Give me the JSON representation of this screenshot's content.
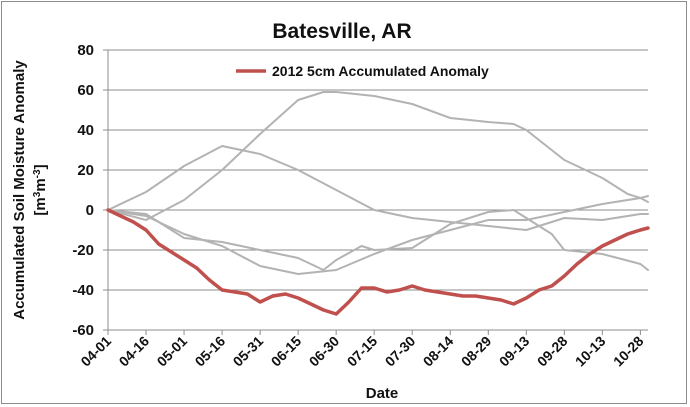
{
  "chart_data": {
    "type": "line",
    "title": "Batesville, AR",
    "xlabel": "Date",
    "ylabel": "Accumulated Soil Moisture Anomaly",
    "ylabel_units_base": "[m",
    "ylabel_units_sup1": "3",
    "ylabel_units_mid": "m",
    "ylabel_units_sup2": "-3",
    "ylabel_units_end": "]",
    "ylim": [
      -60,
      80
    ],
    "yticks": [
      -60,
      -40,
      -20,
      0,
      20,
      40,
      60,
      80
    ],
    "xlim": [
      0,
      213
    ],
    "x_categories": [
      "04-01",
      "04-16",
      "05-01",
      "05-16",
      "05-31",
      "06-15",
      "06-30",
      "07-15",
      "07-30",
      "08-14",
      "08-29",
      "09-13",
      "09-28",
      "10-13",
      "10-28"
    ],
    "x_tick_days": [
      0,
      15,
      30,
      45,
      60,
      75,
      90,
      105,
      120,
      135,
      150,
      165,
      180,
      195,
      210
    ],
    "grid": "horizontal",
    "legend": "top-center",
    "colors": {
      "highlight": "#c0504d",
      "other": "#b3b3b3",
      "grid": "#8c8c8c"
    },
    "series": [
      {
        "name": "2012 5cm Accumulated Anomaly",
        "highlight": true,
        "x": [
          0,
          5,
          10,
          15,
          20,
          25,
          30,
          35,
          40,
          45,
          50,
          55,
          60,
          65,
          70,
          75,
          80,
          85,
          90,
          95,
          100,
          105,
          110,
          115,
          120,
          125,
          130,
          135,
          140,
          145,
          150,
          155,
          160,
          165,
          170,
          175,
          180,
          185,
          190,
          195,
          200,
          205,
          210,
          213
        ],
        "y": [
          0,
          -3,
          -6,
          -10,
          -17,
          -21,
          -25,
          -29,
          -35,
          -40,
          -41,
          -42,
          -46,
          -43,
          -42,
          -44,
          -47,
          -50,
          -52,
          -46,
          -39,
          -39,
          -41,
          -40,
          -38,
          -40,
          -41,
          -42,
          -43,
          -43,
          -44,
          -45,
          -47,
          -44,
          -40,
          -38,
          -33,
          -27,
          -22,
          -18,
          -15,
          -12,
          -10,
          -9
        ]
      },
      {
        "x": [
          0,
          15,
          30,
          45,
          60,
          75,
          90,
          105,
          120,
          135,
          150,
          165,
          180,
          195,
          210,
          213
        ],
        "y": [
          0,
          9,
          22,
          32,
          28,
          20,
          10,
          0,
          -4,
          -6,
          -8,
          -10,
          -4,
          -5,
          -2,
          -2
        ]
      },
      {
        "x": [
          0,
          15,
          30,
          45,
          60,
          75,
          85,
          90,
          100,
          105,
          120,
          135,
          150,
          160,
          175,
          180,
          195,
          210,
          213
        ],
        "y": [
          0,
          -2,
          -14,
          -16,
          -20,
          -24,
          -30,
          -25,
          -18,
          -20,
          -19,
          -7,
          -1,
          0,
          -12,
          -20,
          -22,
          -27,
          -30
        ]
      },
      {
        "x": [
          0,
          15,
          30,
          45,
          60,
          75,
          85,
          90,
          105,
          120,
          135,
          150,
          160,
          165,
          180,
          195,
          205,
          210,
          213
        ],
        "y": [
          0,
          -5,
          5,
          20,
          38,
          55,
          59,
          59,
          57,
          53,
          46,
          44,
          43,
          40,
          25,
          16,
          8,
          6,
          4
        ]
      },
      {
        "x": [
          0,
          15,
          30,
          45,
          60,
          75,
          90,
          105,
          120,
          135,
          150,
          165,
          180,
          195,
          210,
          213
        ],
        "y": [
          0,
          -3,
          -12,
          -18,
          -28,
          -32,
          -30,
          -22,
          -15,
          -10,
          -5,
          -5,
          -1,
          3,
          6,
          7
        ]
      }
    ]
  }
}
